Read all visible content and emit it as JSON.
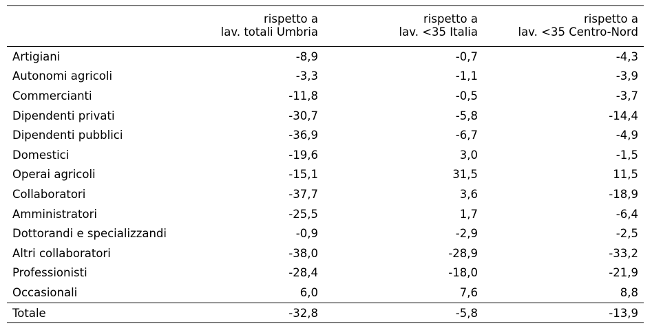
{
  "chart_data": {
    "type": "table",
    "columns": [
      {
        "line1": "rispetto a",
        "line2": "lav. totali Umbria"
      },
      {
        "line1": "rispetto a",
        "line2": "lav. <35 Italia"
      },
      {
        "line1": "rispetto a",
        "line2": "lav. <35 Centro-Nord"
      }
    ],
    "rows": [
      {
        "label": "Artigiani",
        "values": [
          "-8,9",
          "-0,7",
          "-4,3"
        ]
      },
      {
        "label": "Autonomi agricoli",
        "values": [
          "-3,3",
          "-1,1",
          "-3,9"
        ]
      },
      {
        "label": "Commercianti",
        "values": [
          "-11,8",
          "-0,5",
          "-3,7"
        ]
      },
      {
        "label": "Dipendenti privati",
        "values": [
          "-30,7",
          "-5,8",
          "-14,4"
        ]
      },
      {
        "label": "Dipendenti pubblici",
        "values": [
          "-36,9",
          "-6,7",
          "-4,9"
        ]
      },
      {
        "label": "Domestici",
        "values": [
          "-19,6",
          "3,0",
          "-1,5"
        ]
      },
      {
        "label": "Operai agricoli",
        "values": [
          "-15,1",
          "31,5",
          "11,5"
        ]
      },
      {
        "label": "Collaboratori",
        "values": [
          "-37,7",
          "3,6",
          "-18,9"
        ]
      },
      {
        "label": "Amministratori",
        "values": [
          "-25,5",
          "1,7",
          "-6,4"
        ]
      },
      {
        "label": "Dottorandi e specializzandi",
        "values": [
          "-0,9",
          "-2,9",
          "-2,5"
        ]
      },
      {
        "label": "Altri collaboratori",
        "values": [
          "-38,0",
          "-28,9",
          "-33,2"
        ]
      },
      {
        "label": "Professionisti",
        "values": [
          "-28,4",
          "-18,0",
          "-21,9"
        ]
      },
      {
        "label": "Occasionali",
        "values": [
          "6,0",
          "7,6",
          "8,8"
        ]
      }
    ],
    "total": {
      "label": "Totale",
      "values": [
        "-32,8",
        "-5,8",
        "-13,9"
      ]
    }
  }
}
